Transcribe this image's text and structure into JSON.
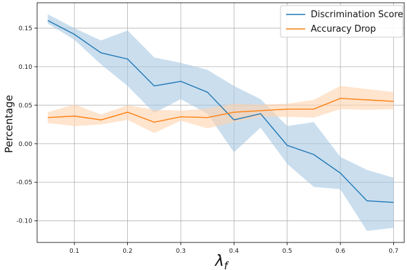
{
  "chart_data": {
    "type": "line",
    "xlabel": "λ",
    "xlabel_sub": "f",
    "ylabel": "Percentage",
    "xlim": [
      0.03,
      0.72
    ],
    "ylim": [
      -0.128,
      0.183
    ],
    "xticks": [
      0.1,
      0.2,
      0.3,
      0.4,
      0.5,
      0.6,
      0.7
    ],
    "xtick_labels": [
      "0.1",
      "0.2",
      "0.3",
      "0.4",
      "0.5",
      "0.6",
      "0.7"
    ],
    "yticks": [
      -0.1,
      -0.05,
      0.0,
      0.05,
      0.1,
      0.15
    ],
    "ytick_labels": [
      "-0.10",
      "-0.05",
      "0.00",
      "0.05",
      "0.10",
      "0.15"
    ],
    "grid": true,
    "legend_position": "top-right",
    "x": [
      0.05,
      0.1,
      0.15,
      0.2,
      0.25,
      0.3,
      0.35,
      0.4,
      0.45,
      0.5,
      0.55,
      0.6,
      0.65,
      0.7
    ],
    "series": [
      {
        "name": "Discrimination Score",
        "color": "#1f77b4",
        "band_color": "#a6c8e3",
        "values": [
          0.16,
          0.142,
          0.118,
          0.11,
          0.075,
          0.081,
          0.067,
          0.031,
          0.039,
          -0.002,
          -0.014,
          -0.038,
          -0.074,
          -0.076
        ],
        "upper": [
          0.168,
          0.15,
          0.134,
          0.147,
          0.112,
          0.105,
          0.096,
          0.075,
          0.058,
          0.023,
          0.028,
          -0.017,
          -0.034,
          -0.044
        ],
        "lower": [
          0.156,
          0.135,
          0.103,
          0.075,
          0.04,
          0.058,
          0.039,
          -0.011,
          0.021,
          -0.026,
          -0.056,
          -0.059,
          -0.113,
          -0.109
        ]
      },
      {
        "name": "Accuracy Drop",
        "color": "#ff7f0e",
        "band_color": "#ffd2ad",
        "values": [
          0.034,
          0.036,
          0.031,
          0.041,
          0.028,
          0.035,
          0.034,
          0.041,
          0.043,
          0.045,
          0.045,
          0.059,
          0.057,
          0.055
        ],
        "upper": [
          0.041,
          0.051,
          0.038,
          0.05,
          0.044,
          0.043,
          0.046,
          0.052,
          0.051,
          0.052,
          0.057,
          0.075,
          0.071,
          0.067
        ],
        "lower": [
          0.027,
          0.023,
          0.025,
          0.031,
          0.014,
          0.03,
          0.02,
          0.028,
          0.035,
          0.035,
          0.034,
          0.045,
          0.044,
          0.045
        ]
      }
    ]
  }
}
